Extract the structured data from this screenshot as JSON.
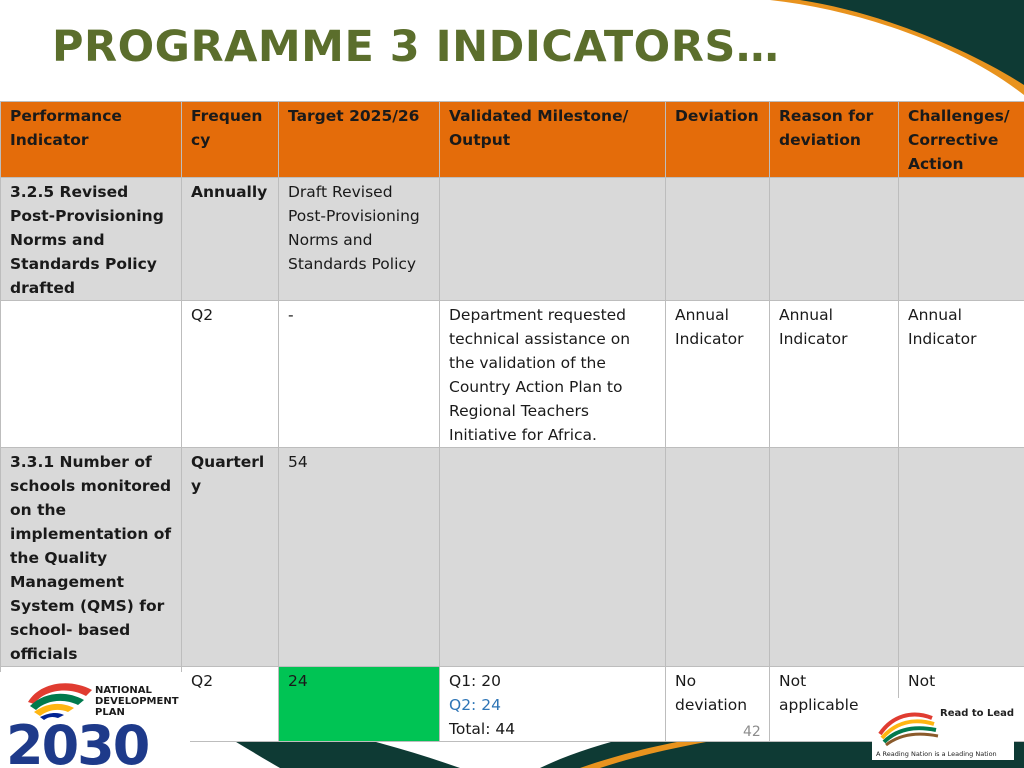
{
  "slide": {
    "title": "PROGRAMME 3 INDICATORS…",
    "page_number": "42"
  },
  "table": {
    "headers": [
      "Performance Indicator",
      "Frequency",
      "Target 2025/26",
      "Validated Milestone/ Output",
      "Deviation",
      "Reason for deviation",
      "Challenges/ Corrective Action"
    ],
    "rows": [
      [
        "3.2.5 Revised Post-Provisioning Norms and Standards Policy drafted",
        "Annually",
        "Draft Revised Post-Provisioning Norms and Standards Policy",
        "",
        "",
        "",
        ""
      ],
      [
        "",
        "Q2",
        "-",
        "Department requested technical assistance on the validation of the Country Action Plan to Regional Teachers Initiative for Africa.",
        "Annual Indicator",
        "Annual Indicator",
        "Annual Indicator"
      ],
      [
        "3.3.1 Number of schools monitored on the implementation of the Quality Management System (QMS) for school- based officials",
        "Quarterly",
        "54",
        "",
        "",
        "",
        ""
      ],
      [
        "",
        "Q2",
        "24",
        "",
        "No deviation",
        "Not applicable",
        "Not applicable"
      ]
    ],
    "milestone_lines": {
      "q1": "Q1: 20",
      "q2": "Q2: 24",
      "total": "Total: 44"
    }
  },
  "logos": {
    "left": {
      "line1": "NATIONAL",
      "line2": "DEVELOPMENT",
      "line3": "PLAN",
      "year": "2030"
    },
    "right": {
      "heading": "Read to Lead",
      "tagline": "A Reading Nation is a Leading Nation"
    }
  },
  "colors": {
    "title": "#5b6e2c",
    "header_fill": "#e46c0a",
    "grey_row": "#d9d9d9",
    "target_met": "#00c454",
    "q2_text": "#2e75b6",
    "dark_teal": "#0e3a34",
    "orange": "#e8931e"
  }
}
